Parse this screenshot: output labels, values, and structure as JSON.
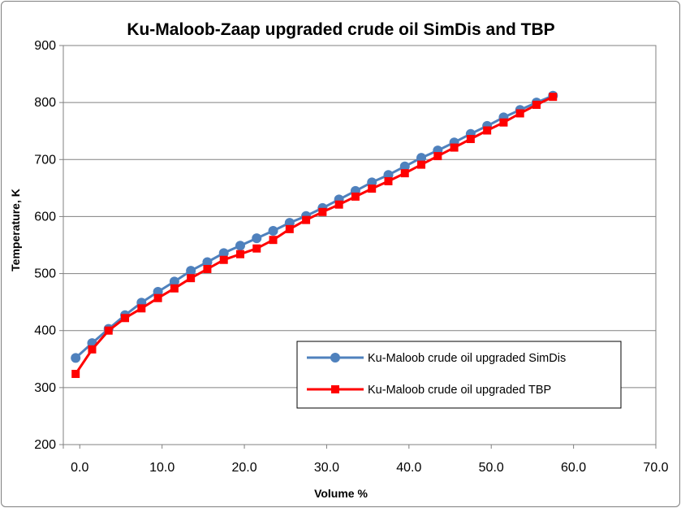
{
  "chart_data": {
    "type": "line",
    "title": "Ku-Maloob-Zaap  upgraded crude oil SimDis and  TBP",
    "xlabel": "Volume %",
    "ylabel": "Temperature,  K",
    "xlim": [
      -2,
      70
    ],
    "ylim": [
      200,
      900
    ],
    "x_ticks": [
      "0.0",
      "10.0",
      "20.0",
      "30.0",
      "40.0",
      "50.0",
      "60.0",
      "70.0"
    ],
    "y_ticks": [
      "200",
      "300",
      "400",
      "500",
      "600",
      "700",
      "800",
      "900"
    ],
    "grid": "horizontal",
    "legend_position": "bottom-right",
    "series": [
      {
        "name": "Ku-Maloob crude oil upgraded SimDis",
        "color": "#4f81bd",
        "marker": "circle",
        "x": [
          -0.5,
          1.5,
          3.5,
          5.5,
          7.5,
          9.5,
          11.5,
          13.5,
          15.5,
          17.5,
          19.5,
          21.5,
          23.5,
          25.5,
          27.5,
          29.5,
          31.5,
          33.5,
          35.5,
          37.5,
          39.5,
          41.5,
          43.5,
          45.5,
          47.5,
          49.5,
          51.5,
          53.5,
          55.5,
          57.5
        ],
        "y": [
          352,
          378,
          403,
          427,
          449,
          468,
          486,
          505,
          520,
          536,
          549,
          562,
          575,
          589,
          601,
          615,
          630,
          645,
          660,
          673,
          688,
          703,
          716,
          730,
          745,
          759,
          774,
          787,
          800,
          812
        ]
      },
      {
        "name": "Ku-Maloob crude oil upgraded TBP",
        "color": "#ff0000",
        "marker": "square",
        "x": [
          -0.5,
          1.5,
          3.5,
          5.5,
          7.5,
          9.5,
          11.5,
          13.5,
          15.5,
          17.5,
          19.5,
          21.5,
          23.5,
          25.5,
          27.5,
          29.5,
          31.5,
          33.5,
          35.5,
          37.5,
          39.5,
          41.5,
          43.5,
          45.5,
          47.5,
          49.5,
          51.5,
          53.5,
          55.5,
          57.5
        ],
        "y": [
          324,
          367,
          400,
          422,
          439,
          457,
          474,
          492,
          508,
          524,
          534,
          544,
          559,
          578,
          594,
          608,
          621,
          635,
          649,
          662,
          676,
          691,
          706,
          721,
          736,
          751,
          765,
          781,
          796,
          810
        ]
      }
    ]
  }
}
